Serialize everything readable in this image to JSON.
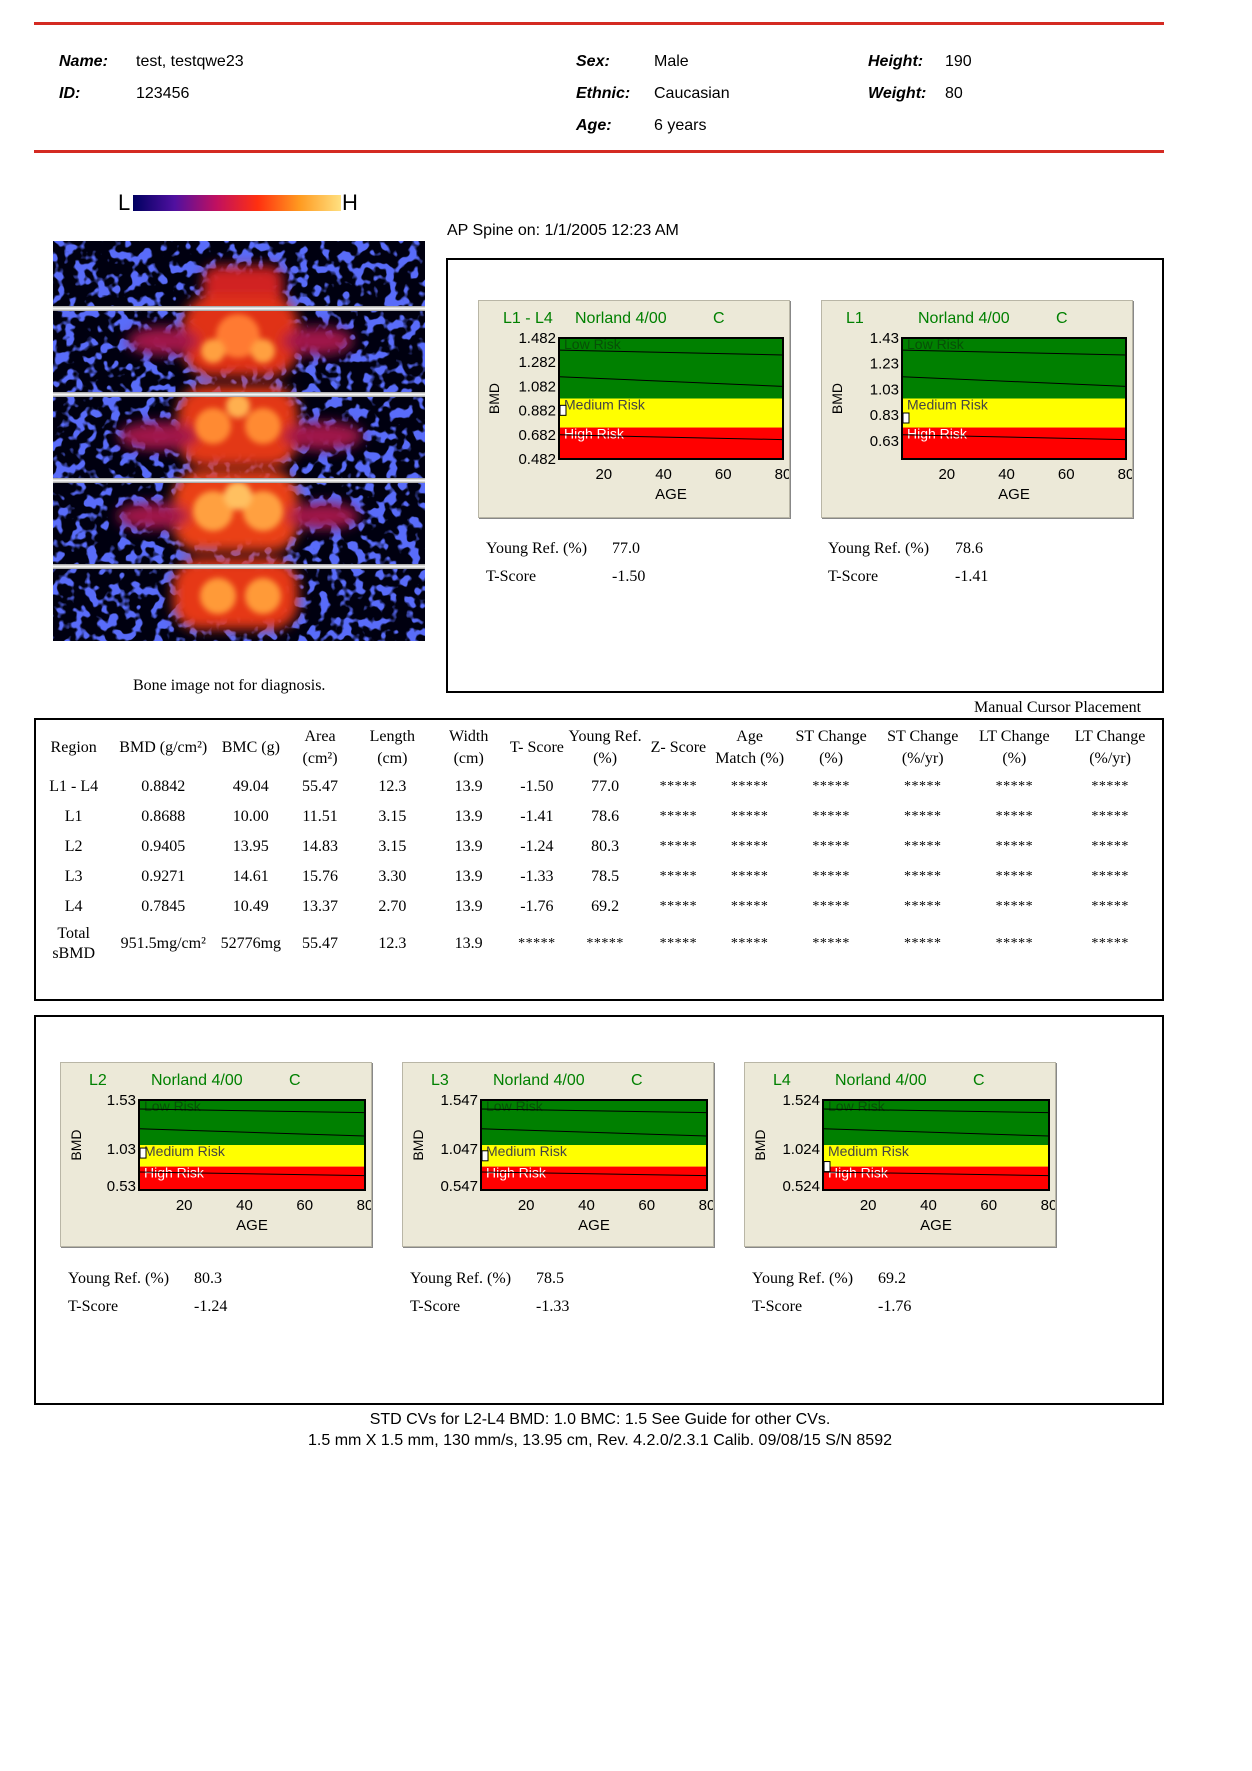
{
  "patient": {
    "name_label": "Name:",
    "name": "test, testqwe23",
    "id_label": "ID:",
    "id": "123456",
    "sex_label": "Sex:",
    "sex": "Male",
    "ethnic_label": "Ethnic:",
    "ethnic": "Caucasian",
    "age_label": "Age:",
    "age": "6 years",
    "height_label": "Height:",
    "height": "190",
    "weight_label": "Weight:",
    "weight": "80"
  },
  "colorbar": {
    "low": "L",
    "high": "H"
  },
  "image_note": "Bone image not for diagnosis.",
  "scan_title": "AP Spine on: 1/1/2005 12:23 AM",
  "cursor_note": "Manual Cursor Placement",
  "colors": {
    "rule": "#d42a22",
    "low_risk": "#008000",
    "medium_risk": "#ffff00",
    "high_risk": "#ff0000",
    "chart_bg": "#ece9d8"
  },
  "chart_data": [
    {
      "type": "area",
      "region": "L1 - L4",
      "reference": "Norland 4/00",
      "code": "C",
      "yticks": [
        "1.482",
        "1.282",
        "1.082",
        "0.882",
        "0.682",
        "0.482"
      ],
      "ylim": [
        0.482,
        1.482
      ],
      "xticks": [
        "20",
        "40",
        "60",
        "80"
      ],
      "xlim": [
        5,
        80
      ],
      "xlabel": "AGE",
      "ylabel": "BMD",
      "zones": [
        "Low Risk",
        "Medium Risk",
        "High Risk"
      ],
      "patient_point": {
        "age": 6,
        "bmd": 0.8842
      },
      "young_ref_label": "Young Ref. (%)",
      "young_ref": "77.0",
      "tscore_label": "T-Score",
      "tscore": "-1.50"
    },
    {
      "type": "area",
      "region": "L1",
      "reference": "Norland 4/00",
      "code": "C",
      "yticks": [
        "1.43",
        "1.23",
        "1.03",
        "0.83",
        "0.63"
      ],
      "ylim": [
        0.53,
        1.53
      ],
      "xticks": [
        "20",
        "40",
        "60",
        "80"
      ],
      "xlim": [
        5,
        80
      ],
      "xlabel": "AGE",
      "ylabel": "BMD",
      "zones": [
        "Low Risk",
        "Medium Risk",
        "High Risk"
      ],
      "patient_point": {
        "age": 6,
        "bmd": 0.8688
      },
      "young_ref_label": "Young Ref. (%)",
      "young_ref": "78.6",
      "tscore_label": "T-Score",
      "tscore": "-1.41"
    },
    {
      "type": "area",
      "region": "L2",
      "reference": "Norland 4/00",
      "code": "C",
      "yticks": [
        "1.53",
        "1.03",
        "0.53"
      ],
      "ylim": [
        0.53,
        1.53
      ],
      "xticks": [
        "20",
        "40",
        "60",
        "80"
      ],
      "xlim": [
        5,
        80
      ],
      "xlabel": "AGE",
      "ylabel": "BMD",
      "zones": [
        "Low Risk",
        "Medium Risk",
        "High Risk"
      ],
      "patient_point": {
        "age": 6,
        "bmd": 0.9405
      },
      "young_ref_label": "Young Ref. (%)",
      "young_ref": "80.3",
      "tscore_label": "T-Score",
      "tscore": "-1.24"
    },
    {
      "type": "area",
      "region": "L3",
      "reference": "Norland 4/00",
      "code": "C",
      "yticks": [
        "1.547",
        "1.047",
        "0.547"
      ],
      "ylim": [
        0.547,
        1.547
      ],
      "xticks": [
        "20",
        "40",
        "60",
        "80"
      ],
      "xlim": [
        5,
        80
      ],
      "xlabel": "AGE",
      "ylabel": "BMD",
      "zones": [
        "Low Risk",
        "Medium Risk",
        "High Risk"
      ],
      "patient_point": {
        "age": 6,
        "bmd": 0.9271
      },
      "young_ref_label": "Young Ref. (%)",
      "young_ref": "78.5",
      "tscore_label": "T-Score",
      "tscore": "-1.33"
    },
    {
      "type": "area",
      "region": "L4",
      "reference": "Norland 4/00",
      "code": "C",
      "yticks": [
        "1.524",
        "1.024",
        "0.524"
      ],
      "ylim": [
        0.524,
        1.524
      ],
      "xticks": [
        "20",
        "40",
        "60",
        "80"
      ],
      "xlim": [
        5,
        80
      ],
      "xlabel": "AGE",
      "ylabel": "BMD",
      "zones": [
        "Low Risk",
        "Medium Risk",
        "High Risk"
      ],
      "patient_point": {
        "age": 6,
        "bmd": 0.7845
      },
      "young_ref_label": "Young Ref. (%)",
      "young_ref": "69.2",
      "tscore_label": "T-Score",
      "tscore": "-1.76"
    }
  ],
  "table": {
    "headers": [
      "Region",
      "BMD (g/cm²)",
      "BMC (g)",
      "Area (cm²)",
      "Length (cm)",
      "Width (cm)",
      "T- Score",
      "Young Ref. (%)",
      "Z- Score",
      "Age Match (%)",
      "ST Change (%)",
      "ST Change (%/yr)",
      "LT Change (%)",
      "LT Change (%/yr)"
    ],
    "rows": [
      [
        "L1 - L4",
        "0.8842",
        "49.04",
        "55.47",
        "12.3",
        "13.9",
        "-1.50",
        "77.0",
        "*****",
        "*****",
        "*****",
        "*****",
        "*****",
        "*****"
      ],
      [
        "L1",
        "0.8688",
        "10.00",
        "11.51",
        "3.15",
        "13.9",
        "-1.41",
        "78.6",
        "*****",
        "*****",
        "*****",
        "*****",
        "*****",
        "*****"
      ],
      [
        "L2",
        "0.9405",
        "13.95",
        "14.83",
        "3.15",
        "13.9",
        "-1.24",
        "80.3",
        "*****",
        "*****",
        "*****",
        "*****",
        "*****",
        "*****"
      ],
      [
        "L3",
        "0.9271",
        "14.61",
        "15.76",
        "3.30",
        "13.9",
        "-1.33",
        "78.5",
        "*****",
        "*****",
        "*****",
        "*****",
        "*****",
        "*****"
      ],
      [
        "L4",
        "0.7845",
        "10.49",
        "13.37",
        "2.70",
        "13.9",
        "-1.76",
        "69.2",
        "*****",
        "*****",
        "*****",
        "*****",
        "*****",
        "*****"
      ],
      [
        "Total sBMD",
        "951.5mg/cm²",
        "52776mg",
        "55.47",
        "12.3",
        "13.9",
        "*****",
        "*****",
        "*****",
        "*****",
        "*****",
        "*****",
        "*****",
        "*****"
      ]
    ]
  },
  "footer": {
    "line1": "STD CVs for L2-L4 BMD: 1.0 BMC: 1.5 See Guide for other CVs.",
    "line2": "1.5 mm X 1.5 mm, 130 mm/s, 13.95 cm, Rev. 4.2.0/2.3.1 Calib. 09/08/15 S/N 8592"
  }
}
